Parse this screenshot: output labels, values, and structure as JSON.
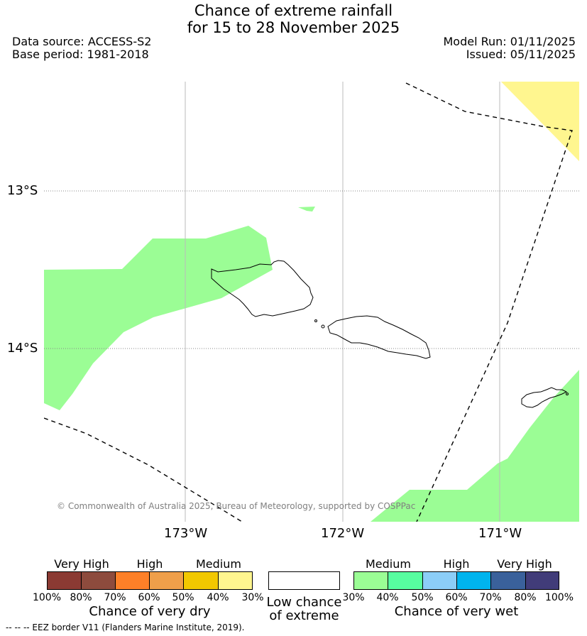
{
  "title_line1": "Chance of extreme rainfall",
  "title_line2": "for 15 to 28 November 2025",
  "data_source": "Data source: ACCESS-S2",
  "base_period": "Base period: 1981-2018",
  "model_run": "Model Run: 01/11/2025",
  "issued": "Issued: 05/11/2025",
  "lat_labels": [
    "13°S",
    "14°S"
  ],
  "lon_labels": [
    "173°W",
    "172°W",
    "171°W"
  ],
  "copyright": "© Commonwealth of Australia 2025, Bureau of Meteorology, supported by COSPPac",
  "colors": {
    "medium_dry": "#fff68f",
    "medium_wet": "#9bfd95",
    "grid": "#bbbbbb"
  },
  "dry_legend": {
    "headings": [
      "Very High",
      "High",
      "Medium"
    ],
    "ticks": [
      "100%",
      "80%",
      "70%",
      "60%",
      "50%",
      "40%",
      "30%"
    ],
    "colors": [
      "#8b3a33",
      "#8d4b3d",
      "#fd8028",
      "#ef9f4a",
      "#f2c800",
      "#fff68f"
    ],
    "title": "Chance of very dry"
  },
  "low_legend": {
    "line1": "Low chance",
    "line2": "of extreme",
    "color": "#ffffff"
  },
  "wet_legend": {
    "headings": [
      "Medium",
      "High",
      "Very High"
    ],
    "ticks": [
      "30%",
      "40%",
      "50%",
      "60%",
      "70%",
      "80%",
      "100%"
    ],
    "colors": [
      "#9bfd95",
      "#57fda0",
      "#8ccef8",
      "#00b4ee",
      "#3a619b",
      "#413c79"
    ],
    "title": "Chance of very wet"
  },
  "footnote": "-- -- -- EEZ border V11 (Flanders Marine Institute, 2019)."
}
